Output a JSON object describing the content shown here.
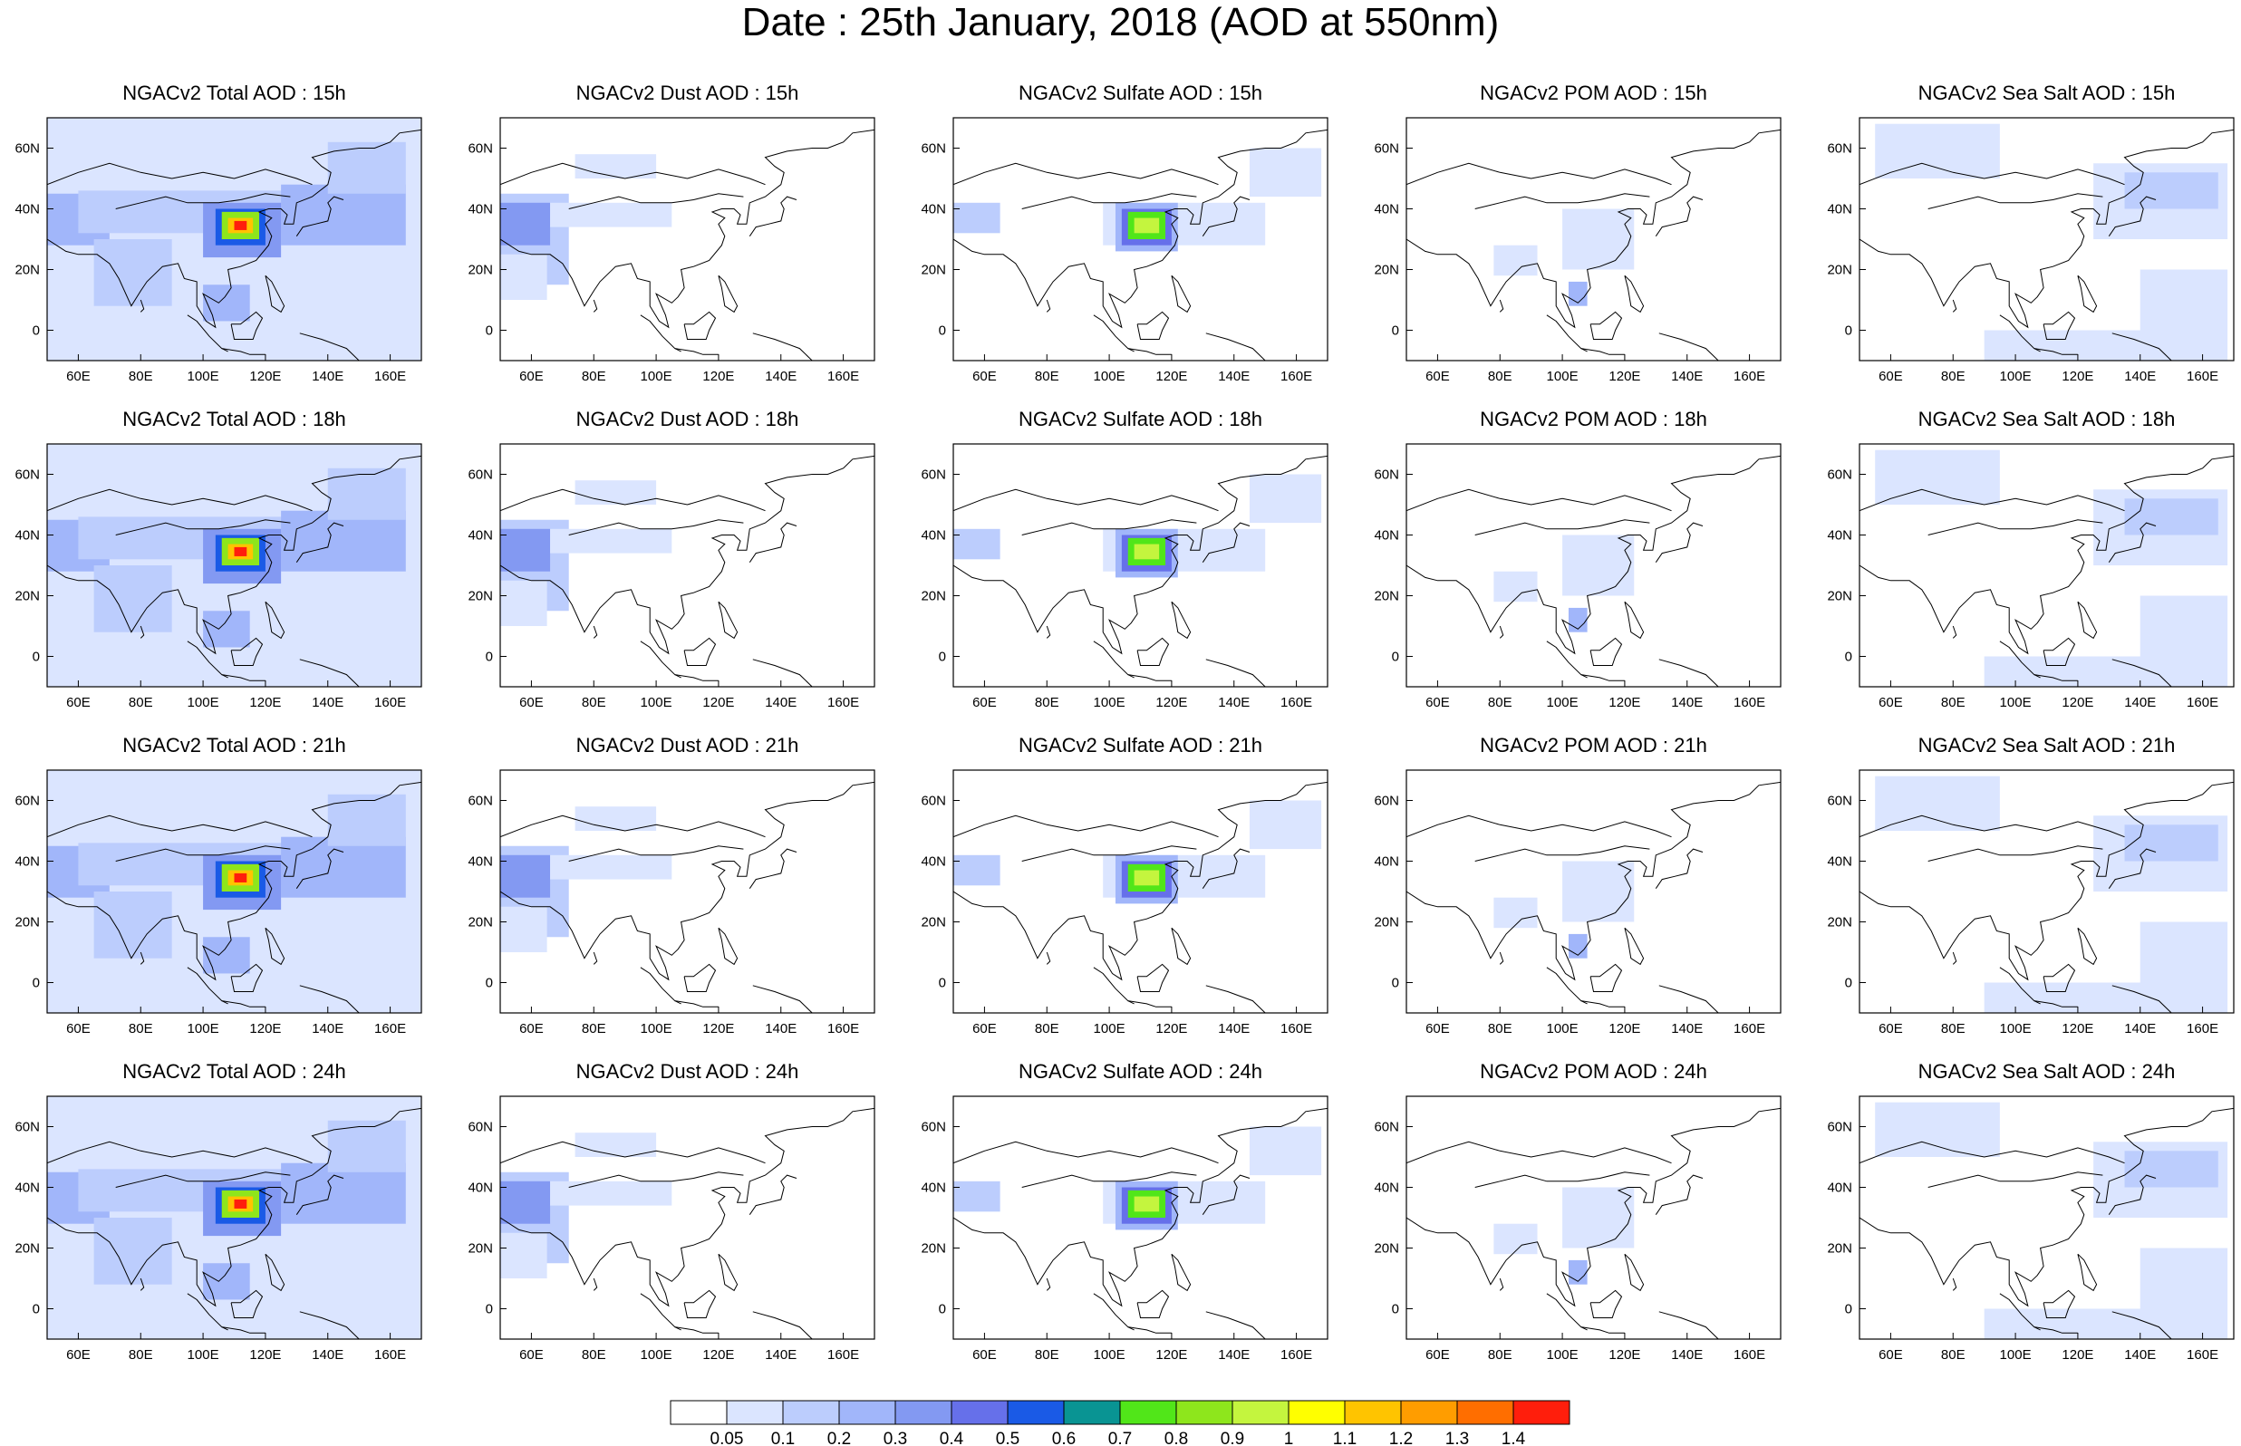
{
  "title": "Date : 25th January, 2018 (AOD at 550nm)",
  "chart_data": {
    "type": "heatmap",
    "rows": [
      "15h",
      "18h",
      "21h",
      "24h"
    ],
    "columns": [
      "Total",
      "Dust",
      "Sulfate",
      "POM",
      "Sea Salt"
    ],
    "panel_titles": [
      [
        "NGACv2 Total AOD : 15h",
        "NGACv2 Dust AOD : 15h",
        "NGACv2 Sulfate AOD : 15h",
        "NGACv2 POM AOD : 15h",
        "NGACv2 Sea Salt AOD : 15h"
      ],
      [
        "NGACv2 Total AOD : 18h",
        "NGACv2 Dust AOD : 18h",
        "NGACv2 Sulfate AOD : 18h",
        "NGACv2 POM AOD : 18h",
        "NGACv2 Sea Salt AOD : 18h"
      ],
      [
        "NGACv2 Total AOD : 21h",
        "NGACv2 Dust AOD : 21h",
        "NGACv2 Sulfate AOD : 21h",
        "NGACv2 POM AOD : 21h",
        "NGACv2 Sea Salt AOD : 21h"
      ],
      [
        "NGACv2 Total AOD : 24h",
        "NGACv2 Dust AOD : 24h",
        "NGACv2 Sulfate AOD : 24h",
        "NGACv2 POM AOD : 24h",
        "NGACv2 Sea Salt  AOD : 24h"
      ]
    ],
    "x_range": [
      50,
      170
    ],
    "y_range": [
      -10,
      70
    ],
    "x_ticks": [
      "60E",
      "80E",
      "100E",
      "120E",
      "140E",
      "160E"
    ],
    "x_tick_values": [
      60,
      80,
      100,
      120,
      140,
      160
    ],
    "y_ticks": [
      "60N",
      "40N",
      "20N",
      "0"
    ],
    "y_tick_values": [
      60,
      40,
      20,
      0
    ],
    "colorbar": {
      "labels": [
        "0.05",
        "0.1",
        "0.2",
        "0.3",
        "0.4",
        "0.5",
        "0.6",
        "0.7",
        "0.8",
        "0.9",
        "1",
        "1.1",
        "1.2",
        "1.3",
        "1.4"
      ],
      "colors": [
        "#ffffff",
        "#dbe5ff",
        "#bccdfd",
        "#a1b6fa",
        "#8399f2",
        "#6670ea",
        "#1a5ae6",
        "#099493",
        "#51e619",
        "#8ee61c",
        "#c4f53e",
        "#ffff00",
        "#ffc400",
        "#ff9d00",
        "#ff6e00",
        "#ff1e0c"
      ]
    },
    "blobs": {
      "Total": [
        {
          "lon": [
            50,
            170
          ],
          "lat": [
            -10,
            70
          ],
          "level": 1
        },
        {
          "lon": [
            50,
            70
          ],
          "lat": [
            28,
            45
          ],
          "level": 3
        },
        {
          "lon": [
            60,
            140
          ],
          "lat": [
            32,
            46
          ],
          "level": 2
        },
        {
          "lon": [
            125,
            165
          ],
          "lat": [
            28,
            48
          ],
          "level": 3
        },
        {
          "lon": [
            65,
            90
          ],
          "lat": [
            8,
            30
          ],
          "level": 2
        },
        {
          "lon": [
            100,
            115
          ],
          "lat": [
            3,
            15
          ],
          "level": 3
        },
        {
          "lon": [
            140,
            165
          ],
          "lat": [
            45,
            62
          ],
          "level": 2
        },
        {
          "lon": [
            100,
            125
          ],
          "lat": [
            24,
            42
          ],
          "level": 4
        },
        {
          "lon": [
            104,
            120
          ],
          "lat": [
            28,
            40
          ],
          "level": 6
        },
        {
          "lon": [
            106,
            118
          ],
          "lat": [
            30,
            39
          ],
          "level": 9
        },
        {
          "lon": [
            108,
            116
          ],
          "lat": [
            32,
            37
          ],
          "level": 12
        },
        {
          "lon": [
            110,
            114
          ],
          "lat": [
            33,
            36
          ],
          "level": 15
        }
      ],
      "Dust": [
        {
          "lon": [
            50,
            72
          ],
          "lat": [
            15,
            45
          ],
          "level": 2
        },
        {
          "lon": [
            50,
            66
          ],
          "lat": [
            28,
            42
          ],
          "level": 4
        },
        {
          "lon": [
            66,
            105
          ],
          "lat": [
            34,
            42
          ],
          "level": 1
        },
        {
          "lon": [
            50,
            65
          ],
          "lat": [
            10,
            25
          ],
          "level": 1
        },
        {
          "lon": [
            74,
            100
          ],
          "lat": [
            50,
            58
          ],
          "level": 1
        }
      ],
      "Sulfate": [
        {
          "lon": [
            50,
            65
          ],
          "lat": [
            32,
            42
          ],
          "level": 2
        },
        {
          "lon": [
            98,
            150
          ],
          "lat": [
            28,
            42
          ],
          "level": 1
        },
        {
          "lon": [
            102,
            122
          ],
          "lat": [
            26,
            42
          ],
          "level": 3
        },
        {
          "lon": [
            104,
            120
          ],
          "lat": [
            28,
            40
          ],
          "level": 5
        },
        {
          "lon": [
            106,
            118
          ],
          "lat": [
            30,
            39
          ],
          "level": 8
        },
        {
          "lon": [
            108,
            116
          ],
          "lat": [
            32,
            37
          ],
          "level": 10
        },
        {
          "lon": [
            145,
            168
          ],
          "lat": [
            44,
            60
          ],
          "level": 1
        }
      ],
      "POM": [
        {
          "lon": [
            100,
            123
          ],
          "lat": [
            20,
            40
          ],
          "level": 1
        },
        {
          "lon": [
            102,
            108
          ],
          "lat": [
            8,
            16
          ],
          "level": 3
        },
        {
          "lon": [
            78,
            92
          ],
          "lat": [
            18,
            28
          ],
          "level": 1
        }
      ],
      "Sea Salt": [
        {
          "lon": [
            125,
            168
          ],
          "lat": [
            30,
            55
          ],
          "level": 1
        },
        {
          "lon": [
            135,
            165
          ],
          "lat": [
            40,
            52
          ],
          "level": 2
        },
        {
          "lon": [
            90,
            168
          ],
          "lat": [
            -10,
            0
          ],
          "level": 1
        },
        {
          "lon": [
            140,
            168
          ],
          "lat": [
            0,
            20
          ],
          "level": 1
        },
        {
          "lon": [
            55,
            95
          ],
          "lat": [
            50,
            68
          ],
          "level": 1
        }
      ]
    }
  }
}
